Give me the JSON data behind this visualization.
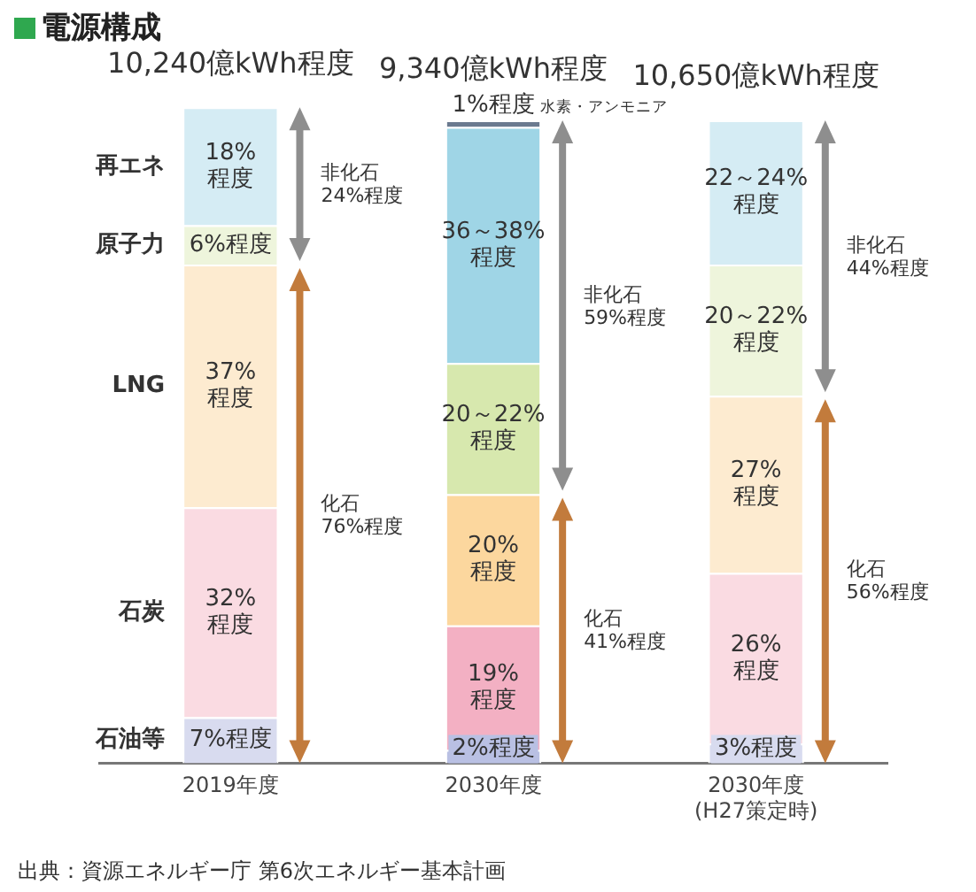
{
  "chart_data": {
    "type": "bar",
    "title": "電源構成",
    "stacked": true,
    "legend": false,
    "categories": [
      "2019年度",
      "2030年度",
      "2030年度\n(H27策定時)"
    ],
    "series": [
      {
        "name": "石油等",
        "colors": [
          "#d8dbef",
          "#b9c0e3",
          "#d8dbef"
        ],
        "values": [
          7,
          2,
          3
        ],
        "value_labels": [
          "7%程度",
          "2%程度",
          "3%程度"
        ]
      },
      {
        "name": "石炭",
        "colors": [
          "#fadbe2",
          "#f3b0c3",
          "#fadbe2"
        ],
        "values": [
          32,
          19,
          26
        ],
        "value_labels": [
          "32%\n程度",
          "19%\n程度",
          "26%\n程度"
        ]
      },
      {
        "name": "LNG",
        "colors": [
          "#fdebd0",
          "#fcd79e",
          "#fdebd0"
        ],
        "values": [
          37,
          20,
          27
        ],
        "value_labels": [
          "37%\n程度",
          "20%\n程度",
          "27%\n程度"
        ]
      },
      {
        "name": "原子力",
        "colors": [
          "#eef5dc",
          "#d7e8ae",
          "#eef5dc"
        ],
        "values": [
          6,
          20,
          20
        ],
        "value_labels": [
          "6%程度",
          "20～22%\n程度",
          "20～22%\n程度"
        ]
      },
      {
        "name": "再エネ",
        "colors": [
          "#d5ecf4",
          "#9fd5e6",
          "#d5ecf4"
        ],
        "values": [
          18,
          36,
          22
        ],
        "value_labels": [
          "18%\n程度",
          "36～38%\n程度",
          "22～24%\n程度"
        ]
      },
      {
        "name": "水素・アンモニア",
        "colors": [
          "#6b7a8f",
          "#6b7a8f",
          "#6b7a8f"
        ],
        "values": [
          null,
          1,
          null
        ],
        "value_labels": [
          null,
          "1%程度",
          null
        ]
      }
    ],
    "annotations": [
      {
        "text": "10,240億kWh程度",
        "x": "2019年度",
        "y": 100
      },
      {
        "text": "9,340億kWh程度",
        "x": "2030年度",
        "y": 98
      },
      {
        "text": "10,650億kWh程度",
        "x": "2030年度\n(H27策定時)",
        "y": 98
      },
      "非化石\n24%程度",
      "化石\n76%程度",
      "非化石\n59%程度",
      "化石\n41%程度",
      "非化石\n44%程度",
      "化石\n56%程度",
      "出典：資源エネルギー庁 第6次エネルギー基本計画"
    ]
  }
}
